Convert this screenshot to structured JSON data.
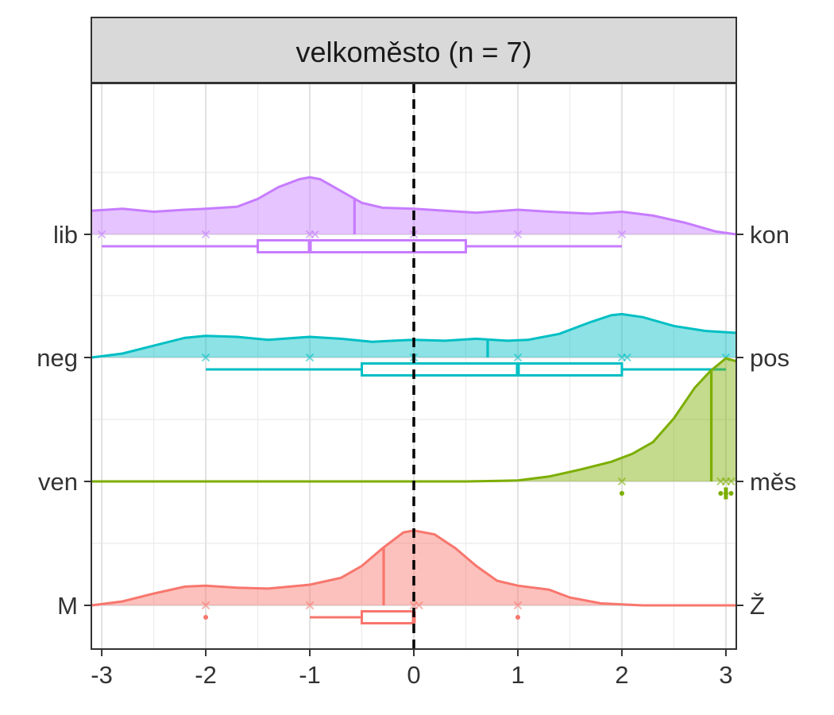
{
  "chart_data": {
    "type": "raincloud",
    "facet_title": "velkoměsto (n = 7)",
    "xlim": [
      -3.1,
      3.1
    ],
    "x_ticks": [
      "-3",
      "-2",
      "-1",
      "0",
      "1",
      "2",
      "3"
    ],
    "x_tick_values": [
      -3,
      -2,
      -1,
      0,
      1,
      2,
      3
    ],
    "reference_line_x": 0,
    "grid": true,
    "series": [
      {
        "left_label": "lib",
        "right_label": "kon",
        "color": "#C77CFF",
        "points": [
          -3,
          -2,
          -1,
          -0.95,
          0,
          1,
          2
        ],
        "mean": -0.57,
        "box": {
          "whisker_low": -3,
          "q1": -1.5,
          "median": -1,
          "q3": 0.5,
          "whisker_high": 2
        },
        "outliers": [],
        "density": [
          [
            -3.1,
            0.24
          ],
          [
            -2.8,
            0.26
          ],
          [
            -2.5,
            0.23
          ],
          [
            -2.2,
            0.25
          ],
          [
            -2.0,
            0.26
          ],
          [
            -1.7,
            0.28
          ],
          [
            -1.5,
            0.36
          ],
          [
            -1.3,
            0.48
          ],
          [
            -1.1,
            0.56
          ],
          [
            -1.0,
            0.58
          ],
          [
            -0.9,
            0.56
          ],
          [
            -0.7,
            0.44
          ],
          [
            -0.5,
            0.32
          ],
          [
            -0.3,
            0.27
          ],
          [
            0,
            0.26
          ],
          [
            0.3,
            0.24
          ],
          [
            0.6,
            0.22
          ],
          [
            1.0,
            0.25
          ],
          [
            1.3,
            0.23
          ],
          [
            1.7,
            0.21
          ],
          [
            2.0,
            0.23
          ],
          [
            2.3,
            0.19
          ],
          [
            2.6,
            0.12
          ],
          [
            2.9,
            0.03
          ],
          [
            3.1,
            0.0
          ]
        ]
      },
      {
        "left_label": "neg",
        "right_label": "pos",
        "color": "#00BFC4",
        "points": [
          -2,
          -1,
          0,
          1,
          2,
          2.05,
          3
        ],
        "mean": 0.71,
        "box": {
          "whisker_low": -2,
          "q1": -0.5,
          "median": 1,
          "q3": 2,
          "whisker_high": 3
        },
        "outliers": [],
        "density": [
          [
            -3.1,
            0.0
          ],
          [
            -2.8,
            0.04
          ],
          [
            -2.5,
            0.12
          ],
          [
            -2.2,
            0.2
          ],
          [
            -2.0,
            0.22
          ],
          [
            -1.7,
            0.21
          ],
          [
            -1.4,
            0.18
          ],
          [
            -1.0,
            0.21
          ],
          [
            -0.7,
            0.19
          ],
          [
            -0.4,
            0.16
          ],
          [
            -0.2,
            0.17
          ],
          [
            0,
            0.18
          ],
          [
            0.3,
            0.17
          ],
          [
            0.6,
            0.19
          ],
          [
            0.9,
            0.17
          ],
          [
            1.1,
            0.18
          ],
          [
            1.4,
            0.24
          ],
          [
            1.7,
            0.36
          ],
          [
            1.9,
            0.43
          ],
          [
            2.0,
            0.44
          ],
          [
            2.2,
            0.41
          ],
          [
            2.5,
            0.32
          ],
          [
            2.8,
            0.27
          ],
          [
            3.1,
            0.25
          ]
        ]
      },
      {
        "left_label": "ven",
        "right_label": "měs",
        "color": "#7CAE00",
        "points": [
          2,
          2.95,
          3,
          3.05
        ],
        "mean": 2.86,
        "box": {
          "whisker_low": 3,
          "q1": 3,
          "median": 3,
          "q3": 3,
          "whisker_high": 3
        },
        "outliers": [
          2,
          2.95,
          3,
          3.05
        ],
        "density": [
          [
            -3.1,
            0.0
          ],
          [
            0,
            0.0
          ],
          [
            0.5,
            0.0
          ],
          [
            1.0,
            0.01
          ],
          [
            1.3,
            0.05
          ],
          [
            1.6,
            0.12
          ],
          [
            1.9,
            0.2
          ],
          [
            2.1,
            0.28
          ],
          [
            2.3,
            0.4
          ],
          [
            2.5,
            0.64
          ],
          [
            2.7,
            0.95
          ],
          [
            2.85,
            1.12
          ],
          [
            3.0,
            1.25
          ],
          [
            3.1,
            1.22
          ]
        ]
      },
      {
        "left_label": "M",
        "right_label": "Ž",
        "color": "#F8766D",
        "points": [
          -2,
          -1,
          0,
          0.05,
          1
        ],
        "mean": -0.29,
        "box": {
          "whisker_low": -1,
          "q1": -0.5,
          "median": 0,
          "q3": 0,
          "whisker_high": 0
        },
        "outliers": [
          -2,
          1
        ],
        "density": [
          [
            -3.1,
            0.0
          ],
          [
            -2.8,
            0.04
          ],
          [
            -2.5,
            0.12
          ],
          [
            -2.2,
            0.19
          ],
          [
            -2.0,
            0.2
          ],
          [
            -1.7,
            0.18
          ],
          [
            -1.4,
            0.17
          ],
          [
            -1.0,
            0.21
          ],
          [
            -0.7,
            0.28
          ],
          [
            -0.5,
            0.4
          ],
          [
            -0.3,
            0.58
          ],
          [
            -0.1,
            0.74
          ],
          [
            0.0,
            0.76
          ],
          [
            0.2,
            0.72
          ],
          [
            0.4,
            0.58
          ],
          [
            0.6,
            0.4
          ],
          [
            0.8,
            0.25
          ],
          [
            1.0,
            0.2
          ],
          [
            1.3,
            0.16
          ],
          [
            1.5,
            0.08
          ],
          [
            1.8,
            0.02
          ],
          [
            2.2,
            0.0
          ],
          [
            3.1,
            0.0
          ]
        ]
      }
    ]
  }
}
